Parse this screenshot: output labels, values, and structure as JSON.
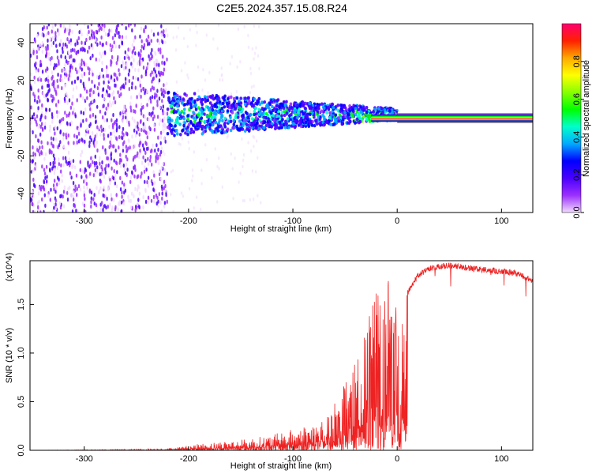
{
  "figure": {
    "title": "C2E5.2024.357.15.08.R24"
  },
  "chart_data": [
    {
      "type": "heatmap",
      "name": "spectrogram",
      "xlabel": "Height of straight line (km)",
      "ylabel": "Frequency (Hz)",
      "xlim": [
        -352,
        130
      ],
      "ylim": [
        -50,
        50
      ],
      "xticks": [
        -300,
        -200,
        -100,
        0,
        100
      ],
      "yticks": [
        -40,
        -20,
        0,
        20,
        40
      ],
      "grid": false,
      "colorbar": {
        "label": "Normalized spectral amplitude",
        "range": [
          0.0,
          1.0
        ],
        "ticks": [
          0.0,
          0.2,
          0.4,
          0.6,
          0.8
        ],
        "colormap": [
          "#f2dcff",
          "#9b30ff",
          "#4a00ff",
          "#0000ff",
          "#00aaff",
          "#00ffcc",
          "#00ff00",
          "#88ff00",
          "#ffff00",
          "#ffaa00",
          "#ff2000",
          "#ff0070"
        ]
      },
      "features": {
        "steady_line": {
          "x_from": 0,
          "x_to": 130,
          "freq_hz": 0,
          "amplitude": 1.0
        },
        "noise_band_x": [
          -352,
          -220
        ],
        "signal_band_x": [
          -220,
          0
        ]
      }
    },
    {
      "type": "line",
      "name": "snr",
      "xlabel": "Height of straight line (km)",
      "ylabel": "SNR (10 * v/v)",
      "y_multiplier": "(x10^4)",
      "xlim": [
        -352,
        130
      ],
      "ylim": [
        0,
        1.95
      ],
      "xticks": [
        -300,
        -200,
        -100,
        0,
        100
      ],
      "yticks": [
        0.0,
        0.5,
        1.0,
        1.5
      ],
      "grid": false,
      "series": [
        {
          "color": "#ee2222",
          "envelope": {
            "x": [
              -352,
              -250,
              -220,
              -200,
              -180,
              -150,
              -120,
              -100,
              -80,
              -60,
              -50,
              -40,
              -30,
              -20,
              -10,
              0,
              10,
              20,
              30,
              40,
              50,
              60,
              70,
              80,
              90,
              100,
              110,
              120,
              130
            ],
            "y": [
              0.0,
              0.01,
              0.02,
              0.05,
              0.08,
              0.11,
              0.16,
              0.22,
              0.3,
              0.38,
              0.45,
              0.6,
              0.9,
              1.1,
              1.15,
              1.25,
              1.65,
              1.83,
              1.9,
              1.92,
              1.93,
              1.92,
              1.9,
              1.89,
              1.88,
              1.87,
              1.86,
              1.83,
              1.76
            ]
          }
        }
      ]
    }
  ]
}
